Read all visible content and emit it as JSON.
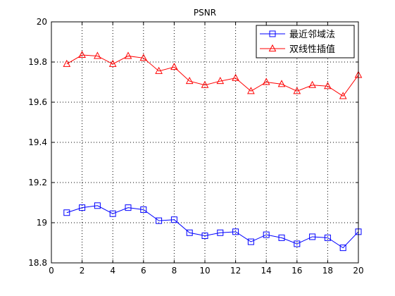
{
  "chart_data": {
    "type": "line",
    "title": "PSNR",
    "xlabel": "",
    "ylabel": "",
    "xlim": [
      0,
      20
    ],
    "ylim": [
      18.8,
      20
    ],
    "xticks": [
      0,
      2,
      4,
      6,
      8,
      10,
      12,
      14,
      16,
      18,
      20
    ],
    "yticks": [
      18.8,
      19,
      19.2,
      19.4,
      19.6,
      19.8,
      20
    ],
    "xtick_labels": [
      "0",
      "2",
      "4",
      "6",
      "8",
      "10",
      "12",
      "14",
      "16",
      "18",
      "20"
    ],
    "ytick_labels": [
      "18.8",
      "19",
      "19.2",
      "19.4",
      "19.6",
      "19.8",
      "20"
    ],
    "grid": true,
    "legend_position": "top-right",
    "x": [
      1,
      2,
      3,
      4,
      5,
      6,
      7,
      8,
      9,
      10,
      11,
      12,
      13,
      14,
      15,
      16,
      17,
      18,
      19,
      20
    ],
    "series": [
      {
        "name": "最近邻域法",
        "color": "#0000ff",
        "marker": "square",
        "values": [
          19.05,
          19.075,
          19.085,
          19.045,
          19.075,
          19.065,
          19.01,
          19.015,
          18.95,
          18.935,
          18.95,
          18.955,
          18.905,
          18.94,
          18.925,
          18.895,
          18.93,
          18.925,
          18.875,
          18.955
        ]
      },
      {
        "name": "双线性插值",
        "color": "#ff0000",
        "marker": "triangle",
        "values": [
          19.79,
          19.835,
          19.83,
          19.79,
          19.83,
          19.82,
          19.755,
          19.775,
          19.705,
          19.685,
          19.705,
          19.72,
          19.655,
          19.7,
          19.69,
          19.655,
          19.685,
          19.68,
          19.63,
          19.735
        ]
      }
    ]
  }
}
